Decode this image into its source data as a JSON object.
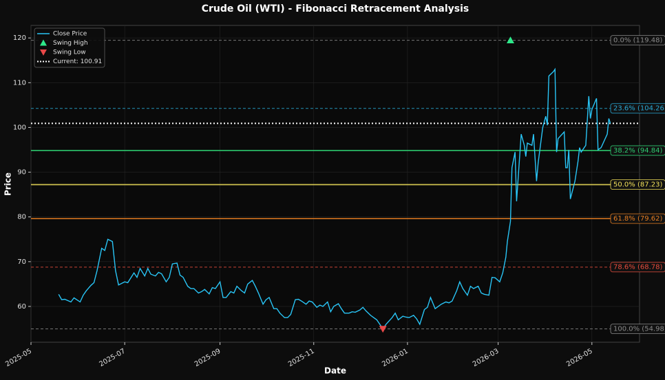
{
  "chart_data": {
    "type": "line",
    "title": "Crude Oil (WTI) - Fibonacci Retracement Analysis",
    "x_label": "Date",
    "y_label": "Price",
    "xlim": [
      "2025-05",
      "2026-06"
    ],
    "xticks": [
      "2025-05",
      "2025-07",
      "2025-09",
      "2025-11",
      "2026-01",
      "2026-03",
      "2026-05"
    ],
    "ylim": [
      52,
      122.8
    ],
    "yticks": [
      60,
      70,
      80,
      90,
      100,
      110,
      120
    ],
    "grid": true,
    "legend": "upper left",
    "x": [
      "2025-05-19",
      "2025-05-21",
      "2025-05-23",
      "2025-05-27",
      "2025-05-29",
      "2025-06-02",
      "2025-06-04",
      "2025-06-06",
      "2025-06-09",
      "2025-06-11",
      "2025-06-13",
      "2025-06-16",
      "2025-06-18",
      "2025-06-20",
      "2025-06-23",
      "2025-06-25",
      "2025-06-27",
      "2025-07-01",
      "2025-07-03",
      "2025-07-07",
      "2025-07-09",
      "2025-07-11",
      "2025-07-14",
      "2025-07-16",
      "2025-07-18",
      "2025-07-21",
      "2025-07-23",
      "2025-07-25",
      "2025-07-28",
      "2025-07-30",
      "2025-08-01",
      "2025-08-04",
      "2025-08-06",
      "2025-08-08",
      "2025-08-11",
      "2025-08-13",
      "2025-08-15",
      "2025-08-18",
      "2025-08-20",
      "2025-08-22",
      "2025-08-25",
      "2025-08-27",
      "2025-08-29",
      "2025-09-01",
      "2025-09-03",
      "2025-09-05",
      "2025-09-08",
      "2025-09-10",
      "2025-09-12",
      "2025-09-15",
      "2025-09-17",
      "2025-09-19",
      "2025-09-22",
      "2025-09-24",
      "2025-09-26",
      "2025-09-29",
      "2025-10-01",
      "2025-10-03",
      "2025-10-06",
      "2025-10-08",
      "2025-10-10",
      "2025-10-13",
      "2025-10-15",
      "2025-10-17",
      "2025-10-20",
      "2025-10-22",
      "2025-10-24",
      "2025-10-27",
      "2025-10-29",
      "2025-10-31",
      "2025-11-03",
      "2025-11-05",
      "2025-11-07",
      "2025-11-10",
      "2025-11-12",
      "2025-11-14",
      "2025-11-17",
      "2025-11-19",
      "2025-11-21",
      "2025-11-24",
      "2025-11-26",
      "2025-11-28",
      "2025-12-01",
      "2025-12-03",
      "2025-12-05",
      "2025-12-08",
      "2025-12-10",
      "2025-12-12",
      "2025-12-16",
      "2025-12-18",
      "2025-12-22",
      "2025-12-24",
      "2025-12-26",
      "2025-12-29",
      "2025-12-31",
      "2026-01-02",
      "2026-01-05",
      "2026-01-07",
      "2026-01-09",
      "2026-01-12",
      "2026-01-14",
      "2026-01-16",
      "2026-01-19",
      "2026-01-21",
      "2026-01-23",
      "2026-01-26",
      "2026-01-28",
      "2026-01-30",
      "2026-02-02",
      "2026-02-04",
      "2026-02-06",
      "2026-02-09",
      "2026-02-11",
      "2026-02-13",
      "2026-02-16",
      "2026-02-18",
      "2026-02-20",
      "2026-02-23",
      "2026-02-25",
      "2026-02-27",
      "2026-03-02",
      "2026-03-04",
      "2026-03-06",
      "2026-03-07",
      "2026-03-09",
      "2026-03-10",
      "2026-03-12",
      "2026-03-13",
      "2026-03-16",
      "2026-03-18",
      "2026-03-19",
      "2026-03-20",
      "2026-03-23",
      "2026-03-24",
      "2026-03-26",
      "2026-03-27",
      "2026-03-30",
      "2026-04-01",
      "2026-04-02",
      "2026-04-03",
      "2026-04-06",
      "2026-04-07",
      "2026-04-08",
      "2026-04-09",
      "2026-04-13",
      "2026-04-14",
      "2026-04-15",
      "2026-04-16",
      "2026-04-17",
      "2026-04-20",
      "2026-04-22",
      "2026-04-23",
      "2026-04-24",
      "2026-04-27",
      "2026-04-29",
      "2026-04-30",
      "2026-05-01",
      "2026-05-04",
      "2026-05-05",
      "2026-05-07",
      "2026-05-11",
      "2026-05-12",
      "2026-05-13"
    ],
    "series": [
      {
        "name": "Close Price",
        "color": "#29c5f6",
        "values": [
          62.7,
          61.5,
          61.6,
          61.0,
          61.9,
          61.0,
          62.5,
          63.5,
          64.7,
          65.3,
          68.0,
          73.0,
          72.5,
          75.0,
          74.5,
          68.0,
          64.8,
          65.5,
          65.3,
          67.5,
          66.5,
          68.5,
          66.8,
          68.5,
          67.2,
          66.8,
          67.6,
          67.3,
          65.5,
          66.5,
          69.5,
          69.7,
          67.0,
          66.5,
          64.5,
          64.0,
          64.0,
          63.0,
          63.3,
          63.8,
          62.8,
          64.2,
          64.0,
          65.5,
          62.0,
          62.0,
          63.3,
          63.0,
          64.5,
          63.5,
          63.0,
          65.0,
          65.8,
          64.5,
          63.0,
          60.5,
          61.5,
          62.0,
          59.5,
          59.5,
          58.5,
          57.5,
          57.5,
          58.2,
          61.5,
          61.6,
          61.2,
          60.5,
          61.2,
          61.0,
          59.8,
          60.3,
          60.0,
          61.0,
          58.8,
          60.0,
          60.6,
          59.5,
          58.5,
          58.5,
          58.8,
          58.7,
          59.2,
          59.8,
          59.0,
          58.0,
          57.5,
          57.0,
          55.0,
          56.0,
          57.5,
          58.5,
          57.0,
          57.8,
          57.6,
          57.5,
          58.0,
          57.2,
          56.0,
          59.3,
          59.8,
          62.0,
          59.5,
          60.0,
          60.5,
          61.0,
          60.8,
          61.2,
          63.5,
          65.5,
          64.0,
          62.5,
          64.5,
          64.0,
          64.5,
          63.0,
          62.7,
          62.5,
          66.5,
          66.4,
          65.5,
          67.5,
          71.0,
          74.5,
          79.0,
          91.0,
          94.5,
          83.5,
          98.5,
          96.0,
          93.5,
          96.5,
          96.0,
          98.5,
          88.0,
          92.0,
          100.0,
          102.5,
          100.5,
          111.5,
          112.5,
          113.0,
          94.5,
          97.5,
          99.0,
          91.0,
          91.0,
          95.0,
          84.0,
          88.0,
          92.5,
          95.5,
          94.5,
          96.0,
          107.0,
          102.0,
          104.0,
          106.5,
          95.0,
          95.5,
          98.5,
          102.0,
          100.91
        ]
      }
    ],
    "markers": [
      {
        "name": "Swing High",
        "x": "2026-03-09",
        "value": 119.48,
        "color": "#2ee88a",
        "shape": "up"
      },
      {
        "name": "Swing Low",
        "x": "2025-12-16",
        "value": 54.98,
        "color": "#e84848",
        "shape": "down"
      }
    ],
    "current": {
      "name": "Current: 100.91",
      "value": 100.91,
      "color": "#ffffff"
    },
    "levels": [
      {
        "label": "0.0% (119.48)",
        "value": 119.48,
        "color": "#8a8a8a",
        "style": "dashed"
      },
      {
        "label": "23.6% (104.26)",
        "value": 104.26,
        "color": "#29a9d6",
        "style": "dashed"
      },
      {
        "label": "38.2% (94.84)",
        "value": 94.84,
        "color": "#2ecc71",
        "style": "solid"
      },
      {
        "label": "50.0% (87.23)",
        "value": 87.23,
        "color": "#f1e05a",
        "style": "solid"
      },
      {
        "label": "61.8% (79.62)",
        "value": 79.62,
        "color": "#e67e22",
        "style": "solid"
      },
      {
        "label": "78.6% (68.78)",
        "value": 68.78,
        "color": "#e74c3c",
        "style": "dashed"
      },
      {
        "label": "100.0% (54.98)",
        "value": 54.98,
        "color": "#8a8a8a",
        "style": "dashed"
      }
    ]
  }
}
